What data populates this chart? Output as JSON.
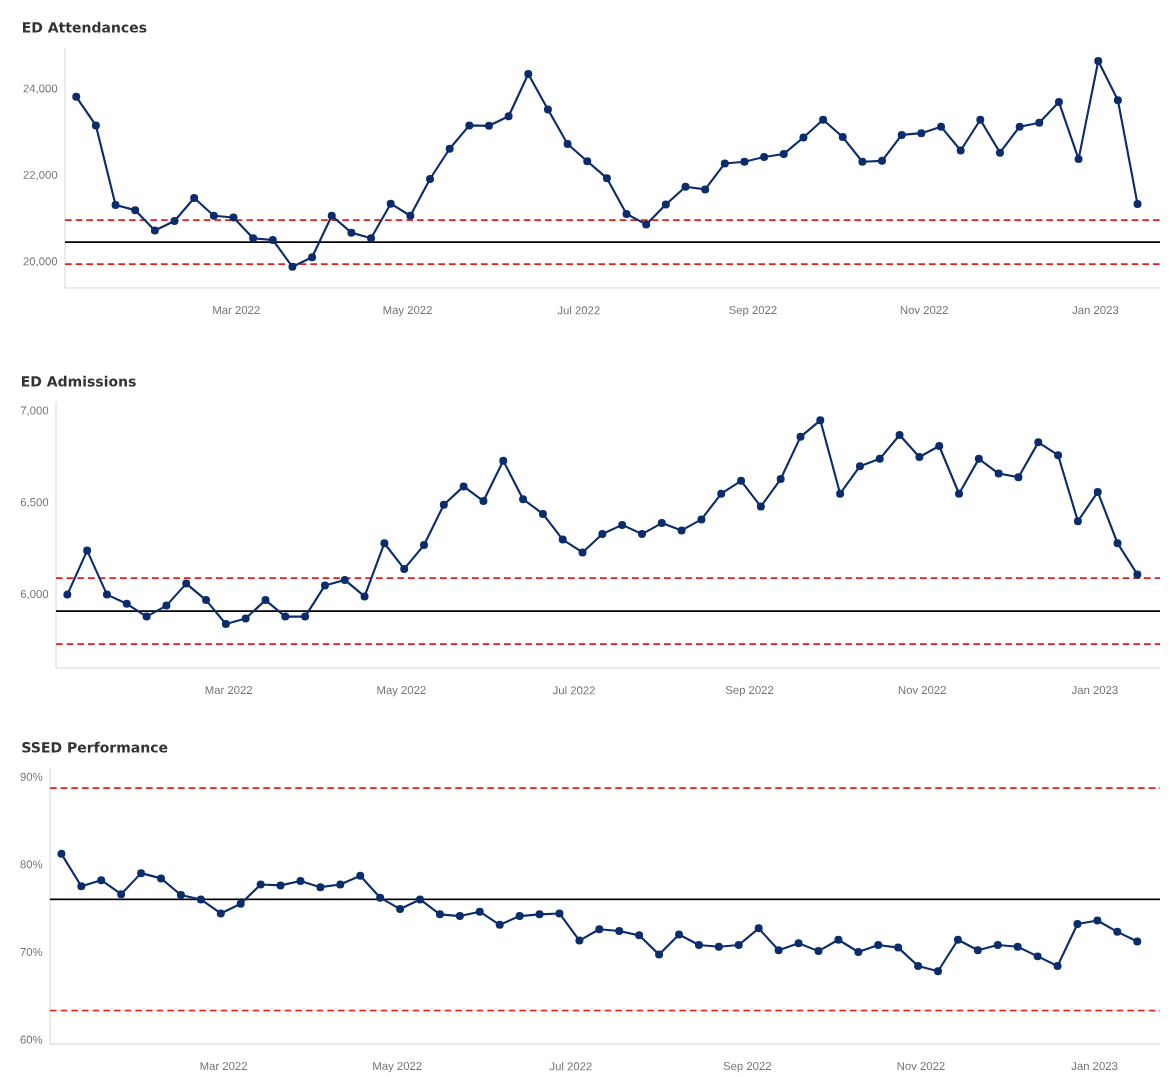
{
  "chart_data": [
    {
      "type": "line",
      "title": "ED Attendances",
      "marker": "circle",
      "line_style": "solid",
      "x": [
        "2022-01-03",
        "2022-01-10",
        "2022-01-17",
        "2022-01-24",
        "2022-01-31",
        "2022-02-07",
        "2022-02-14",
        "2022-02-21",
        "2022-02-28",
        "2022-03-07",
        "2022-03-14",
        "2022-03-21",
        "2022-03-28",
        "2022-04-04",
        "2022-04-11",
        "2022-04-18",
        "2022-04-25",
        "2022-05-02",
        "2022-05-09",
        "2022-05-16",
        "2022-05-23",
        "2022-05-30",
        "2022-06-06",
        "2022-06-13",
        "2022-06-20",
        "2022-06-27",
        "2022-07-04",
        "2022-07-11",
        "2022-07-18",
        "2022-07-25",
        "2022-08-01",
        "2022-08-08",
        "2022-08-15",
        "2022-08-22",
        "2022-08-29",
        "2022-09-05",
        "2022-09-12",
        "2022-09-19",
        "2022-09-26",
        "2022-10-03",
        "2022-10-10",
        "2022-10-17",
        "2022-10-24",
        "2022-10-31",
        "2022-11-07",
        "2022-11-14",
        "2022-11-21",
        "2022-11-28",
        "2022-12-05",
        "2022-12-12",
        "2022-12-19",
        "2022-12-26",
        "2023-01-02",
        "2023-01-09",
        "2023-01-16"
      ],
      "series": [
        {
          "color": "#0b2d6b",
          "values": [
            23820,
            23160,
            21320,
            21200,
            20730,
            20950,
            21480,
            21070,
            21030,
            20550,
            20510,
            19890,
            20110,
            21070,
            20680,
            20550,
            21350,
            21070,
            21920,
            22620,
            23160,
            23150,
            23370,
            24350,
            23530,
            22730,
            22330,
            21940,
            21110,
            20870,
            21330,
            21740,
            21680,
            22280,
            22320,
            22430,
            22500,
            22880,
            23290,
            22890,
            22320,
            22340,
            22940,
            22980,
            23130,
            22580,
            23290,
            22530,
            23130,
            23220,
            23700,
            22380,
            24650,
            23740,
            21340
          ]
        }
      ],
      "xlim": [
        "2021-12-30",
        "2023-01-24"
      ],
      "xticks": [
        {
          "value": "2022-03-01",
          "label": "Mar 2022"
        },
        {
          "value": "2022-05-01",
          "label": "May 2022"
        },
        {
          "value": "2022-07-01",
          "label": "Jul 2022"
        },
        {
          "value": "2022-09-01",
          "label": "Sep 2022"
        },
        {
          "value": "2022-11-01",
          "label": "Nov 2022"
        },
        {
          "value": "2023-01-01",
          "label": "Jan 2023"
        }
      ],
      "ylim": [
        19400,
        24950
      ],
      "yticks": [
        {
          "value": 20000,
          "label": "20,000"
        },
        {
          "value": 22000,
          "label": "22,000"
        },
        {
          "value": 24000,
          "label": "24,000"
        }
      ],
      "ref_lines": [
        {
          "axis": "y",
          "value": 20460,
          "color": "#000000",
          "line_style": "solid"
        },
        {
          "axis": "y",
          "value": 20970,
          "color": "#e02020",
          "line_style": "dashed"
        },
        {
          "axis": "y",
          "value": 19950,
          "color": "#e02020",
          "line_style": "dashed"
        }
      ]
    },
    {
      "type": "line",
      "title": "ED Admissions",
      "marker": "circle",
      "line_style": "solid",
      "x": [
        "2022-01-03",
        "2022-01-10",
        "2022-01-17",
        "2022-01-24",
        "2022-01-31",
        "2022-02-07",
        "2022-02-14",
        "2022-02-21",
        "2022-02-28",
        "2022-03-07",
        "2022-03-14",
        "2022-03-21",
        "2022-03-28",
        "2022-04-04",
        "2022-04-11",
        "2022-04-18",
        "2022-04-25",
        "2022-05-02",
        "2022-05-09",
        "2022-05-16",
        "2022-05-23",
        "2022-05-30",
        "2022-06-06",
        "2022-06-13",
        "2022-06-20",
        "2022-06-27",
        "2022-07-04",
        "2022-07-11",
        "2022-07-18",
        "2022-07-25",
        "2022-08-01",
        "2022-08-08",
        "2022-08-15",
        "2022-08-22",
        "2022-08-29",
        "2022-09-05",
        "2022-09-12",
        "2022-09-19",
        "2022-09-26",
        "2022-10-03",
        "2022-10-10",
        "2022-10-17",
        "2022-10-24",
        "2022-10-31",
        "2022-11-07",
        "2022-11-14",
        "2022-11-21",
        "2022-11-28",
        "2022-12-05",
        "2022-12-12",
        "2022-12-19",
        "2022-12-26",
        "2023-01-02",
        "2023-01-09",
        "2023-01-16"
      ],
      "series": [
        {
          "color": "#0b2d6b",
          "values": [
            6000,
            6240,
            6000,
            5950,
            5880,
            5940,
            6060,
            5970,
            5840,
            5870,
            5970,
            5880,
            5880,
            6050,
            6080,
            5990,
            6280,
            6140,
            6270,
            6490,
            6590,
            6510,
            6730,
            6520,
            6440,
            6300,
            6230,
            6330,
            6380,
            6330,
            6390,
            6350,
            6410,
            6550,
            6620,
            6480,
            6630,
            6860,
            6950,
            6550,
            6700,
            6740,
            6870,
            6750,
            6810,
            6550,
            6740,
            6660,
            6640,
            6830,
            6760,
            6400,
            6560,
            6280,
            6110
          ]
        }
      ],
      "xlim": [
        "2021-12-30",
        "2023-01-24"
      ],
      "xticks": [
        {
          "value": "2022-03-01",
          "label": "Mar 2022"
        },
        {
          "value": "2022-05-01",
          "label": "May 2022"
        },
        {
          "value": "2022-07-01",
          "label": "Jul 2022"
        },
        {
          "value": "2022-09-01",
          "label": "Sep 2022"
        },
        {
          "value": "2022-11-01",
          "label": "Nov 2022"
        },
        {
          "value": "2023-01-01",
          "label": "Jan 2023"
        }
      ],
      "ylim": [
        5600,
        7050
      ],
      "yticks": [
        {
          "value": 6000,
          "label": "6,000"
        },
        {
          "value": 6500,
          "label": "6,500"
        },
        {
          "value": 7000,
          "label": "7,000"
        }
      ],
      "ref_lines": [
        {
          "axis": "y",
          "value": 5910,
          "color": "#000000",
          "line_style": "solid"
        },
        {
          "axis": "y",
          "value": 6090,
          "color": "#e02020",
          "line_style": "dashed"
        },
        {
          "axis": "y",
          "value": 5730,
          "color": "#e02020",
          "line_style": "dashed"
        }
      ]
    },
    {
      "type": "line",
      "title": "SSED Performance",
      "marker": "circle",
      "line_style": "solid",
      "x": [
        "2022-01-03",
        "2022-01-10",
        "2022-01-17",
        "2022-01-24",
        "2022-01-31",
        "2022-02-07",
        "2022-02-14",
        "2022-02-21",
        "2022-02-28",
        "2022-03-07",
        "2022-03-14",
        "2022-03-21",
        "2022-03-28",
        "2022-04-04",
        "2022-04-11",
        "2022-04-18",
        "2022-04-25",
        "2022-05-02",
        "2022-05-09",
        "2022-05-16",
        "2022-05-23",
        "2022-05-30",
        "2022-06-06",
        "2022-06-13",
        "2022-06-20",
        "2022-06-27",
        "2022-07-04",
        "2022-07-11",
        "2022-07-18",
        "2022-07-25",
        "2022-08-01",
        "2022-08-08",
        "2022-08-15",
        "2022-08-22",
        "2022-08-29",
        "2022-09-05",
        "2022-09-12",
        "2022-09-19",
        "2022-09-26",
        "2022-10-03",
        "2022-10-10",
        "2022-10-17",
        "2022-10-24",
        "2022-10-31",
        "2022-11-07",
        "2022-11-14",
        "2022-11-21",
        "2022-11-28",
        "2022-12-05",
        "2022-12-12",
        "2022-12-19",
        "2022-12-26",
        "2023-01-02",
        "2023-01-09",
        "2023-01-16"
      ],
      "series": [
        {
          "color": "#0b2d6b",
          "values": [
            81.2,
            77.5,
            78.2,
            76.6,
            79.0,
            78.4,
            76.5,
            76.0,
            74.4,
            75.5,
            77.7,
            77.6,
            78.1,
            77.4,
            77.7,
            78.7,
            76.2,
            74.9,
            76.0,
            74.3,
            74.1,
            74.6,
            73.1,
            74.1,
            74.3,
            74.4,
            71.3,
            72.6,
            72.4,
            71.9,
            69.7,
            72.0,
            70.8,
            70.6,
            70.8,
            72.7,
            70.2,
            71.0,
            70.1,
            71.4,
            70.0,
            70.8,
            70.5,
            68.4,
            67.8,
            71.4,
            70.2,
            70.8,
            70.6,
            69.5,
            68.4,
            73.2,
            73.6,
            72.3,
            71.2
          ]
        }
      ],
      "xlim": [
        "2021-12-30",
        "2023-01-24"
      ],
      "xticks": [
        {
          "value": "2022-03-01",
          "label": "Mar 2022"
        },
        {
          "value": "2022-05-01",
          "label": "May 2022"
        },
        {
          "value": "2022-07-01",
          "label": "Jul 2022"
        },
        {
          "value": "2022-09-01",
          "label": "Sep 2022"
        },
        {
          "value": "2022-11-01",
          "label": "Nov 2022"
        },
        {
          "value": "2023-01-01",
          "label": "Jan 2023"
        }
      ],
      "ylim": [
        59.5,
        91
      ],
      "yticks": [
        {
          "value": 60,
          "label": "60%"
        },
        {
          "value": 70,
          "label": "70%"
        },
        {
          "value": 80,
          "label": "80%"
        },
        {
          "value": 90,
          "label": "90%"
        }
      ],
      "ref_lines": [
        {
          "axis": "y",
          "value": 76.0,
          "color": "#000000",
          "line_style": "solid"
        },
        {
          "axis": "y",
          "value": 88.7,
          "color": "#e02020",
          "line_style": "dashed"
        },
        {
          "axis": "y",
          "value": 63.3,
          "color": "#e02020",
          "line_style": "dashed"
        }
      ]
    }
  ]
}
